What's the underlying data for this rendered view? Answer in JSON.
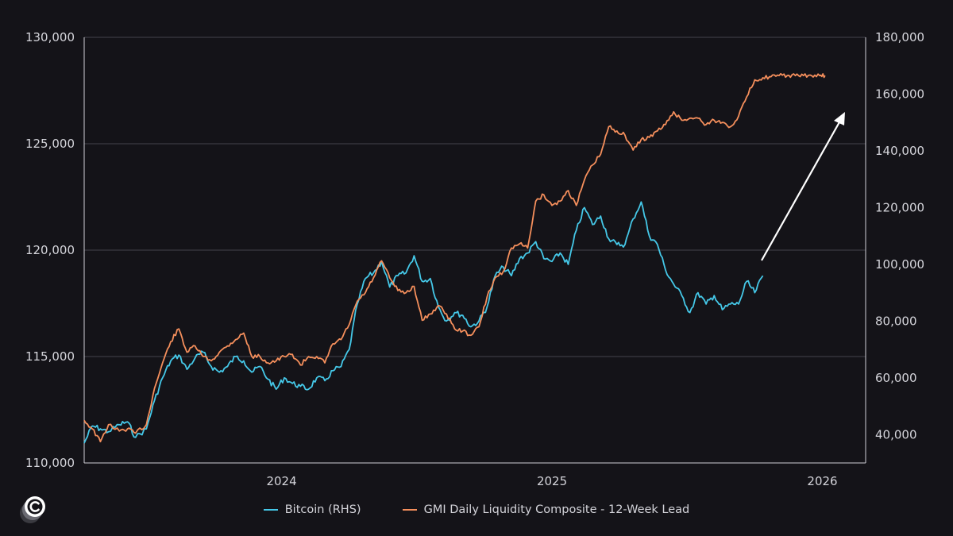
{
  "chart_data": {
    "type": "line",
    "title": "",
    "x_ticks": [
      "2024",
      "2025",
      "2026"
    ],
    "x_range": [
      2023.27,
      2026.16
    ],
    "y_left": {
      "range": [
        110000,
        130000
      ],
      "ticks": [
        110000,
        115000,
        120000,
        125000,
        130000
      ],
      "tick_labels": [
        "110,000",
        "115,000",
        "120,000",
        "125,000",
        "130,000"
      ]
    },
    "y_right": {
      "range": [
        30000,
        180000
      ],
      "ticks": [
        40000,
        60000,
        80000,
        100000,
        120000,
        140000,
        160000,
        180000
      ],
      "tick_labels": [
        "40,000",
        "60,000",
        "80,000",
        "100,000",
        "120,000",
        "140,000",
        "160,000",
        "180,000"
      ]
    },
    "grid": "horizontal",
    "series": [
      {
        "name": "Bitcoin (RHS)",
        "axis": "right",
        "color": "#45c8e8",
        "x": [
          2023.27,
          2023.3,
          2023.33,
          2023.36,
          2023.4,
          2023.43,
          2023.46,
          2023.5,
          2023.53,
          2023.56,
          2023.59,
          2023.62,
          2023.65,
          2023.68,
          2023.71,
          2023.74,
          2023.77,
          2023.8,
          2023.83,
          2023.86,
          2023.89,
          2023.92,
          2023.95,
          2023.98,
          2024.01,
          2024.04,
          2024.07,
          2024.1,
          2024.13,
          2024.16,
          2024.19,
          2024.22,
          2024.25,
          2024.28,
          2024.31,
          2024.34,
          2024.37,
          2024.4,
          2024.43,
          2024.46,
          2024.49,
          2024.52,
          2024.55,
          2024.58,
          2024.61,
          2024.64,
          2024.67,
          2024.7,
          2024.73,
          2024.76,
          2024.79,
          2024.82,
          2024.85,
          2024.88,
          2024.91,
          2024.94,
          2024.97,
          2025.0,
          2025.03,
          2025.06,
          2025.09,
          2025.12,
          2025.15,
          2025.18,
          2025.21,
          2025.24,
          2025.27,
          2025.3,
          2025.33,
          2025.36,
          2025.39,
          2025.42,
          2025.45,
          2025.48,
          2025.51,
          2025.54,
          2025.57,
          2025.6,
          2025.63,
          2025.66,
          2025.69,
          2025.72,
          2025.75,
          2025.78
        ],
        "values": [
          37000,
          43000,
          42000,
          41000,
          43500,
          44500,
          39000,
          42000,
          52000,
          60000,
          66000,
          68000,
          63000,
          67000,
          69000,
          64000,
          62000,
          64000,
          67500,
          66000,
          62000,
          64000,
          59500,
          56000,
          60000,
          58000,
          57000,
          56000,
          60000,
          59000,
          62500,
          64000,
          70000,
          86000,
          95000,
          97000,
          101000,
          92000,
          96000,
          97000,
          103000,
          94000,
          95000,
          85000,
          80000,
          83000,
          82000,
          78000,
          80000,
          85000,
          96000,
          99000,
          96000,
          102000,
          104000,
          108000,
          102000,
          101000,
          104000,
          100000,
          112000,
          120000,
          114000,
          117000,
          109000,
          107000,
          107000,
          116000,
          122000,
          110000,
          107000,
          98000,
          93000,
          89000,
          83000,
          90000,
          86000,
          89000,
          84000,
          86000,
          86000,
          94000,
          90000,
          96000
        ]
      },
      {
        "name": "GMI Daily Liquidity Composite - 12-Week Lead",
        "axis": "left",
        "color": "#f58f5c",
        "x": [
          2023.27,
          2023.3,
          2023.33,
          2023.36,
          2023.4,
          2023.43,
          2023.46,
          2023.5,
          2023.53,
          2023.56,
          2023.59,
          2023.62,
          2023.65,
          2023.68,
          2023.71,
          2023.74,
          2023.77,
          2023.8,
          2023.83,
          2023.86,
          2023.89,
          2023.92,
          2023.95,
          2023.98,
          2024.01,
          2024.04,
          2024.07,
          2024.1,
          2024.13,
          2024.16,
          2024.19,
          2024.22,
          2024.25,
          2024.28,
          2024.31,
          2024.34,
          2024.37,
          2024.4,
          2024.43,
          2024.46,
          2024.49,
          2024.52,
          2024.55,
          2024.58,
          2024.61,
          2024.64,
          2024.67,
          2024.7,
          2024.73,
          2024.76,
          2024.79,
          2024.82,
          2024.85,
          2024.88,
          2024.91,
          2024.94,
          2024.97,
          2025.0,
          2025.03,
          2025.06,
          2025.09,
          2025.12,
          2025.15,
          2025.18,
          2025.21,
          2025.24,
          2025.27,
          2025.3,
          2025.33,
          2025.36,
          2025.39,
          2025.42,
          2025.45,
          2025.48,
          2025.51,
          2025.54,
          2025.57,
          2025.6,
          2025.63,
          2025.66,
          2025.69,
          2025.72,
          2025.75,
          2025.78,
          2025.81,
          2025.84,
          2025.87,
          2025.9,
          2025.93,
          2025.96,
          2025.99,
          2026.01
        ],
        "values": [
          112000,
          111600,
          111000,
          111800,
          111500,
          111600,
          111400,
          111800,
          113500,
          114700,
          115700,
          116300,
          115200,
          115500,
          115000,
          114800,
          115200,
          115500,
          115800,
          116100,
          115000,
          115000,
          114700,
          114800,
          115000,
          115100,
          114600,
          115000,
          115000,
          114700,
          115600,
          115800,
          116500,
          117600,
          118000,
          118700,
          119500,
          118700,
          118100,
          118000,
          118300,
          116700,
          117000,
          117400,
          117000,
          116300,
          116200,
          116000,
          116400,
          117800,
          118700,
          119000,
          120100,
          120300,
          120100,
          122300,
          122600,
          122100,
          122300,
          122800,
          122100,
          123300,
          124000,
          124500,
          125800,
          125600,
          125400,
          124700,
          125200,
          125300,
          125600,
          125900,
          126500,
          126100,
          126200,
          126200,
          125900,
          126100,
          126000,
          125800,
          126300,
          127200,
          128000,
          128100,
          128150,
          128200,
          128200,
          128200,
          128200,
          128200,
          128200,
          128200
        ]
      }
    ],
    "annotation": "arrow pointing up-right indicating projected rise"
  },
  "legend": [
    {
      "label": "Bitcoin (RHS)",
      "color": "#45c8e8"
    },
    {
      "label": "GMI Daily Liquidity Composite - 12-Week Lead",
      "color": "#f58f5c"
    }
  ],
  "logo_icon": "c-logo-icon"
}
